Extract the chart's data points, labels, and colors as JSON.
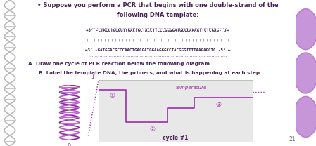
{
  "bg_color": "#f0f0f0",
  "slide_bg": "#f2f2f2",
  "purple_bar": "#7b2f9e",
  "purple_light": "#9b59b6",
  "text_color": "#4a235a",
  "seq_color": "#2c1a3a",
  "title_bullet": "• Suppose you perform a PCR that begins with one double-strand of the",
  "title_line2": "following DNA template:",
  "seq1": "→5’ -CTACCTGCGGTTGACTGCTACCTTCCCGGGGATGCCCAAAATTCTCGAG- 3→",
  "bonds": "| | | | | | | | | | | | | | | | | | | | | | | | | | | | | | | | | | | | | | | | |",
  "seq2": "←3’ -GATGGACGCCCAACTGACGATGGAAGGGCCTACGGGTTTTAAGAGCTC -5’ ←",
  "label_a": "A. Draw one cycle of PCR reaction below the following diagram.",
  "label_b": "B. Label the template DNA, the primers, and what is happening at each step.",
  "temp_label": "temperature",
  "cycle_label": "cycle #1",
  "plot_bg": "#e8e8e8",
  "line_color": "#9b30a8",
  "dna_helix_color1": "#b060c0",
  "dna_helix_color2": "#d090e0",
  "dna_rung_color": "#c070d0",
  "left_dna_color": "#cccccc",
  "page_num": "21"
}
